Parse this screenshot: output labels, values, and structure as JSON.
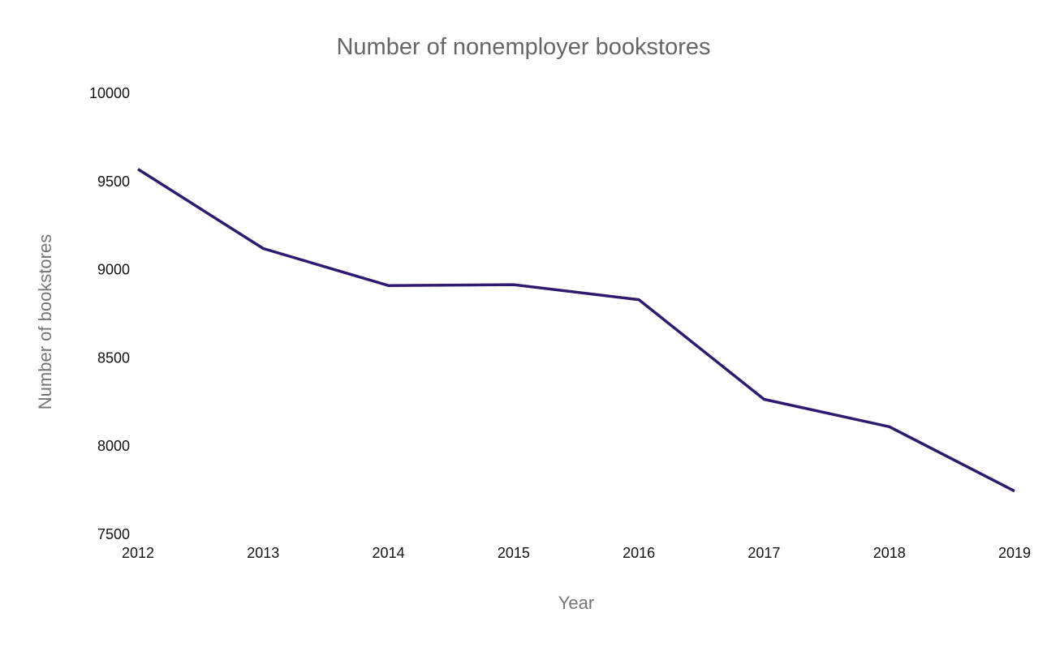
{
  "chart_data": {
    "type": "line",
    "title": "Number of nonemployer bookstores",
    "xlabel": "Year",
    "ylabel": "Number of bookstores",
    "x": [
      "2012",
      "2013",
      "2014",
      "2015",
      "2016",
      "2017",
      "2018",
      "2019"
    ],
    "y_ticks": [
      "7500",
      "8000",
      "8500",
      "9000",
      "9500",
      "10000"
    ],
    "ylim": [
      7500,
      10000
    ],
    "grid": false,
    "legend": "none",
    "series": [
      {
        "color": "#2e1a6e",
        "values": [
          9570,
          9120,
          8910,
          8915,
          8830,
          8265,
          8110,
          7745
        ]
      }
    ]
  }
}
